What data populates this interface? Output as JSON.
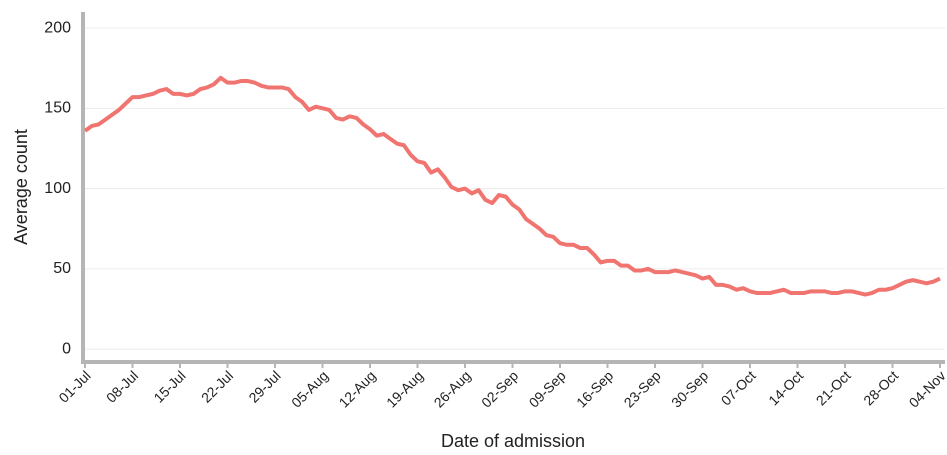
{
  "chart_data": {
    "type": "line",
    "x_label": "Date of admission",
    "y_label": "Average count",
    "categories": [
      "01-Jul",
      null,
      null,
      null,
      null,
      null,
      null,
      "08-Jul",
      null,
      null,
      null,
      null,
      null,
      null,
      "15-Jul",
      null,
      null,
      null,
      null,
      null,
      null,
      "22-Jul",
      null,
      null,
      null,
      null,
      null,
      null,
      "29-Jul",
      null,
      null,
      null,
      null,
      null,
      null,
      "05-Aug",
      null,
      null,
      null,
      null,
      null,
      null,
      "12-Aug",
      null,
      null,
      null,
      null,
      null,
      null,
      "19-Aug",
      null,
      null,
      null,
      null,
      null,
      null,
      "26-Aug",
      null,
      null,
      null,
      null,
      null,
      null,
      "02-Sep",
      null,
      null,
      null,
      null,
      null,
      null,
      "09-Sep",
      null,
      null,
      null,
      null,
      null,
      null,
      "16-Sep",
      null,
      null,
      null,
      null,
      null,
      null,
      "23-Sep",
      null,
      null,
      null,
      null,
      null,
      null,
      "30-Sep",
      null,
      null,
      null,
      null,
      null,
      null,
      "07-Oct",
      null,
      null,
      null,
      null,
      null,
      null,
      "14-Oct",
      null,
      null,
      null,
      null,
      null,
      null,
      "21-Oct",
      null,
      null,
      null,
      null,
      null,
      null,
      "28-Oct",
      null,
      null,
      null,
      null,
      null,
      null,
      "04-Nov"
    ],
    "series": [
      {
        "color": "#f07470",
        "values": [
          136,
          139,
          140,
          143,
          146,
          149,
          153,
          157,
          157,
          158,
          159,
          161,
          162,
          159,
          159,
          158,
          159,
          162,
          163,
          165,
          169,
          166,
          166,
          167,
          167,
          166,
          164,
          163,
          163,
          163,
          162,
          157,
          154,
          149,
          151,
          150,
          149,
          144,
          143,
          145,
          144,
          140,
          137,
          133,
          134,
          131,
          128,
          127,
          121,
          117,
          116,
          110,
          112,
          107,
          101,
          99,
          100,
          97,
          99,
          93,
          91,
          96,
          95,
          90,
          87,
          81,
          78,
          75,
          71,
          70,
          66,
          65,
          65,
          63,
          63,
          59,
          54,
          55,
          55,
          52,
          52,
          49,
          49,
          50,
          48,
          48,
          48,
          49,
          48,
          47,
          46,
          44,
          45,
          40,
          40,
          39,
          37,
          38,
          36,
          35,
          35,
          35,
          36,
          37,
          35,
          35,
          35,
          36,
          36,
          36,
          35,
          35,
          36,
          36,
          35,
          34,
          35,
          37,
          37,
          38,
          40,
          42,
          43,
          42,
          41,
          42,
          44
        ]
      }
    ],
    "ylim": [
      -8,
      210
    ],
    "yticks": [
      0,
      50,
      100,
      150,
      200
    ],
    "grid": true
  }
}
